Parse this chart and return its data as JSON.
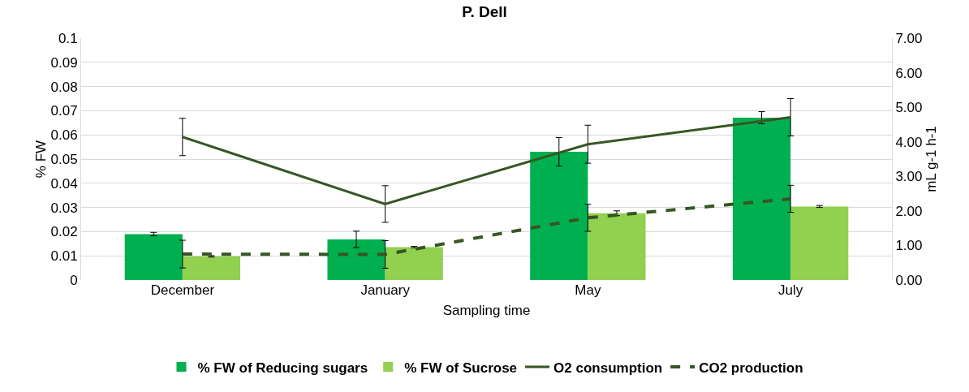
{
  "chart_data": {
    "type": "bar",
    "title": "P. Dell",
    "xlabel": "Sampling time",
    "ylabel": "% FW",
    "y2label": "mL g-1 h-1",
    "categories": [
      "December",
      "January",
      "May",
      "July"
    ],
    "series": [
      {
        "name": "% FW of Reducing sugars",
        "color": "#00b050",
        "values": [
          0.019,
          0.0168,
          0.053,
          0.0671
        ],
        "errors": [
          0.0007,
          0.0034,
          0.0059,
          0.0025
        ]
      },
      {
        "name": "% FW of Sucrose",
        "color": "#92d050",
        "values": [
          0.0098,
          0.0136,
          0.0276,
          0.0304
        ],
        "errors": [
          0.0003,
          0.0003,
          0.001,
          0.0004
        ]
      },
      {
        "name": "O2 consumption",
        "type": "line",
        "axis": "y2",
        "color": "#375623",
        "line_style": "solid",
        "values": [
          4.14,
          2.2,
          3.93,
          4.71
        ],
        "errors": [
          0.54,
          0.53,
          0.55,
          0.54
        ]
      },
      {
        "name": "CO2 production",
        "type": "line",
        "axis": "y2",
        "color": "#375623",
        "line_style": "dashed",
        "values": [
          0.75,
          0.74,
          1.8,
          2.35
        ],
        "errors": [
          0.4,
          0.4,
          0.39,
          0.39
        ]
      }
    ],
    "ylim": [
      0,
      0.1
    ],
    "yticks": [
      0,
      0.01,
      0.02,
      0.03,
      0.04,
      0.05,
      0.06,
      0.07,
      0.08,
      0.09,
      0.1
    ],
    "y2lim": [
      0,
      7
    ],
    "y2ticks": [
      {
        "value": 0,
        "label": "0.00"
      },
      {
        "value": 1,
        "label": "1.00"
      },
      {
        "value": 2,
        "label": "2.00"
      },
      {
        "value": 3,
        "label": "3.00"
      },
      {
        "value": 4,
        "label": "4.00"
      },
      {
        "value": 5,
        "label": "5.00"
      },
      {
        "value": 6,
        "label": "6.00"
      },
      {
        "value": 7,
        "label": "7.00"
      }
    ],
    "grid": "y",
    "legend": "bottom",
    "marker": "none"
  }
}
